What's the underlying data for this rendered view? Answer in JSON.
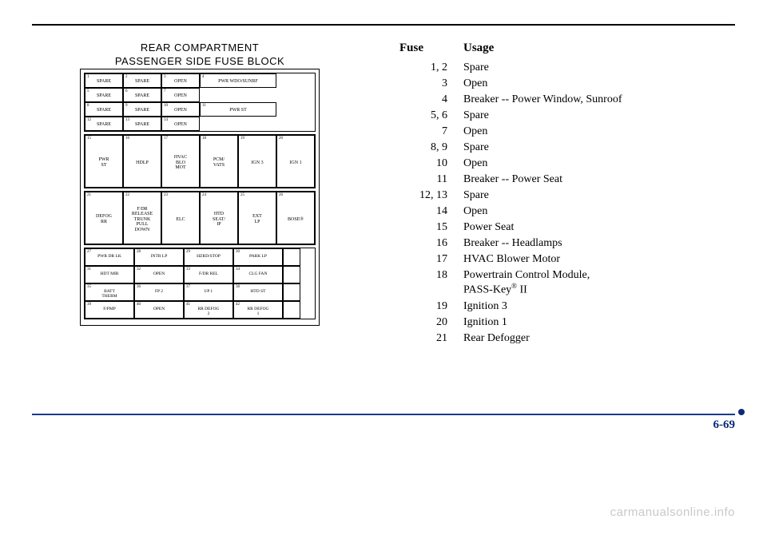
{
  "title_line1": "REAR COMPARTMENT",
  "title_line2": "PASSENGER SIDE FUSE BLOCK",
  "page_number": "6-69",
  "watermark": "carmanualsonline.info",
  "block_a": [
    [
      {
        "n": "1",
        "l": "SPARE"
      },
      {
        "n": "2",
        "l": "SPARE"
      },
      {
        "n": "3",
        "l": "OPEN"
      },
      {
        "n": "4",
        "l": "PWR WDO/SUNRF",
        "wide": true
      }
    ],
    [
      {
        "n": "5",
        "l": "SPARE"
      },
      {
        "n": "6",
        "l": "SPARE"
      },
      {
        "n": "7",
        "l": "OPEN"
      }
    ],
    [
      {
        "n": "8",
        "l": "SPARE"
      },
      {
        "n": "9",
        "l": "SPARE"
      },
      {
        "n": "10",
        "l": "OPEN"
      },
      {
        "n": "11",
        "l": "PWR ST",
        "wide": true
      }
    ],
    [
      {
        "n": "12",
        "l": "SPARE"
      },
      {
        "n": "13",
        "l": "SPARE"
      },
      {
        "n": "14",
        "l": "OPEN"
      }
    ]
  ],
  "block_b": [
    {
      "n": "15",
      "l": "PWR\nST"
    },
    {
      "n": "16",
      "l": "HDLP"
    },
    {
      "n": "17",
      "l": "HVAC\nBLO\nMOT"
    },
    {
      "n": "18",
      "l": "PCM/\nVATS"
    },
    {
      "n": "19",
      "l": "IGN 3"
    },
    {
      "n": "20",
      "l": "IGN 1"
    }
  ],
  "block_c": [
    {
      "n": "21",
      "l": "DEFOG\nRR"
    },
    {
      "n": "22",
      "l": "F/DR\nRELEASE\nTRUNK\nPULL\nDOWN"
    },
    {
      "n": "23",
      "l": "ELC"
    },
    {
      "n": "24",
      "l": "HTD\nSEAT/\nIP"
    },
    {
      "n": "25",
      "l": "EXT\nLP"
    },
    {
      "n": "26",
      "l": "BOSE®"
    }
  ],
  "block_d": [
    [
      {
        "n": "27",
        "l": "PWR DR LK"
      },
      {
        "n": "28",
        "l": "INTR LP"
      },
      {
        "n": "29",
        "l": "HZRD/STOP"
      },
      {
        "n": "30",
        "l": "PARK LP"
      }
    ],
    [
      {
        "n": "31",
        "l": "HDT MIR"
      },
      {
        "n": "32",
        "l": "OPEN"
      },
      {
        "n": "33",
        "l": "F/DR REL"
      },
      {
        "n": "34",
        "l": "CLG FAN"
      }
    ],
    [
      {
        "n": "35",
        "l": "BATT\nTHERM"
      },
      {
        "n": "36",
        "l": "FP 2"
      },
      {
        "n": "37",
        "l": "I/P 1"
      },
      {
        "n": "38",
        "l": "HTD ST"
      }
    ],
    [
      {
        "n": "39",
        "l": "F/PMP"
      },
      {
        "n": "40",
        "l": "OPEN"
      },
      {
        "n": "41",
        "l": "RR DEFOG\n2"
      },
      {
        "n": "42",
        "l": "RR DEFOG\n1"
      }
    ]
  ],
  "usage_header": {
    "fuse": "Fuse",
    "usage": "Usage"
  },
  "usage_rows": [
    {
      "f": "1, 2",
      "u": "Spare"
    },
    {
      "f": "3",
      "u": "Open"
    },
    {
      "f": "4",
      "u": "Breaker -- Power Window, Sunroof"
    },
    {
      "f": "5, 6",
      "u": "Spare"
    },
    {
      "f": "7",
      "u": "Open"
    },
    {
      "f": "8, 9",
      "u": "Spare"
    },
    {
      "f": "10",
      "u": "Open"
    },
    {
      "f": "11",
      "u": "Breaker -- Power Seat"
    },
    {
      "f": "12, 13",
      "u": "Spare"
    },
    {
      "f": "14",
      "u": "Open"
    },
    {
      "f": "15",
      "u": "Power Seat"
    },
    {
      "f": "16",
      "u": "Breaker -- Headlamps"
    },
    {
      "f": "17",
      "u": "HVAC Blower Motor"
    },
    {
      "f": "18",
      "u": "Powertrain Control Module, PASS-Key® II",
      "passkey": true
    },
    {
      "f": "19",
      "u": "Ignition 3"
    },
    {
      "f": "20",
      "u": "Ignition 1"
    },
    {
      "f": "21",
      "u": "Rear Defogger"
    }
  ]
}
